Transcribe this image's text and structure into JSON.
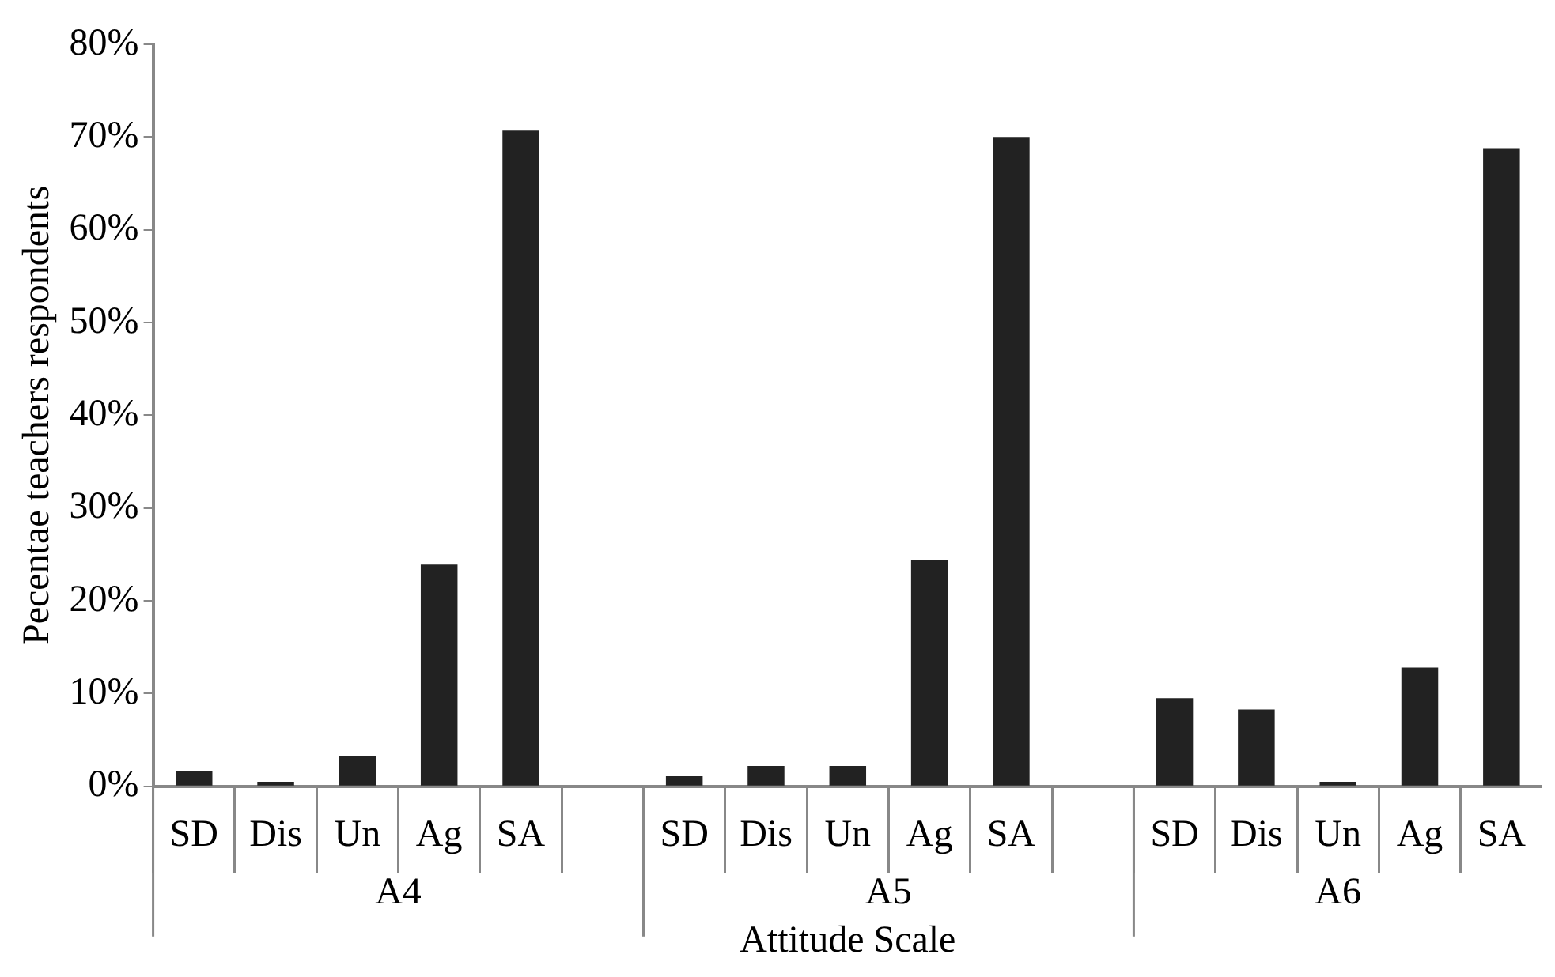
{
  "chart_data": {
    "type": "bar",
    "xlabel": "Attitude Scale",
    "ylabel": "Pecentae teachers respondents",
    "categories": [
      "SD",
      "Dis",
      "Un",
      "Ag",
      "SA",
      null,
      "SD",
      "Dis",
      "Un",
      "Ag",
      "SA",
      null,
      "SD",
      "Dis",
      "Un",
      "Ag",
      "SA"
    ],
    "values": [
      1.6,
      0.5,
      3.3,
      23.9,
      70.7,
      null,
      1.1,
      2.2,
      2.2,
      24.4,
      70.0,
      null,
      9.5,
      8.3,
      0.5,
      12.8,
      68.8
    ],
    "color": "#222222",
    "ylim": [
      0,
      80
    ],
    "yticks": [
      {
        "value": 0,
        "label": "0%"
      },
      {
        "value": 10,
        "label": "10%"
      },
      {
        "value": 20,
        "label": "20%"
      },
      {
        "value": 30,
        "label": "30%"
      },
      {
        "value": 40,
        "label": "40%"
      },
      {
        "value": 50,
        "label": "50%"
      },
      {
        "value": 60,
        "label": "60%"
      },
      {
        "value": 70,
        "label": "70%"
      },
      {
        "value": 80,
        "label": "80%"
      }
    ],
    "grid": false,
    "annotations": [
      "A4",
      "A5",
      "A6"
    ]
  }
}
